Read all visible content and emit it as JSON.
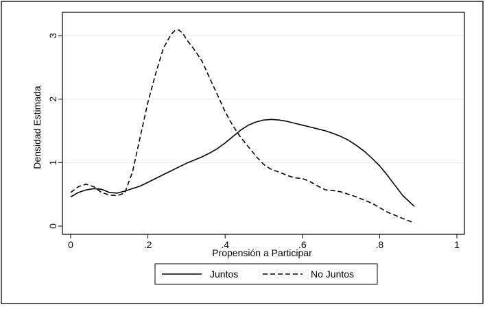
{
  "chart_data": {
    "type": "line",
    "title": "",
    "xlabel": "Propensión a Participar",
    "ylabel": "Densidad Estimada",
    "xlim": [
      0,
      1
    ],
    "ylim": [
      0,
      3.2
    ],
    "x_ticks": [
      0,
      0.2,
      0.4,
      0.6,
      0.8,
      1
    ],
    "x_tick_labels": [
      "0",
      ".2",
      ".4",
      ".6",
      ".8",
      "1"
    ],
    "y_ticks": [
      0,
      1,
      2,
      3
    ],
    "y_tick_labels": [
      "0",
      "1",
      "2",
      "3"
    ],
    "grid": "horizontal",
    "legend_position": "bottom",
    "series": [
      {
        "name": "Juntos",
        "style": "solid",
        "color": "#000000",
        "x": [
          0.0,
          0.02,
          0.04,
          0.06,
          0.08,
          0.1,
          0.12,
          0.14,
          0.16,
          0.18,
          0.2,
          0.22,
          0.24,
          0.26,
          0.28,
          0.3,
          0.32,
          0.34,
          0.36,
          0.38,
          0.4,
          0.42,
          0.44,
          0.46,
          0.48,
          0.5,
          0.52,
          0.54,
          0.56,
          0.58,
          0.6,
          0.62,
          0.64,
          0.66,
          0.68,
          0.7,
          0.72,
          0.74,
          0.76,
          0.78,
          0.8,
          0.82,
          0.84,
          0.86,
          0.89
        ],
        "y": [
          0.46,
          0.53,
          0.57,
          0.59,
          0.58,
          0.53,
          0.52,
          0.55,
          0.59,
          0.63,
          0.69,
          0.75,
          0.81,
          0.87,
          0.93,
          0.99,
          1.04,
          1.09,
          1.15,
          1.22,
          1.31,
          1.41,
          1.51,
          1.59,
          1.64,
          1.67,
          1.68,
          1.67,
          1.65,
          1.62,
          1.59,
          1.56,
          1.53,
          1.5,
          1.46,
          1.41,
          1.35,
          1.27,
          1.18,
          1.07,
          0.95,
          0.8,
          0.64,
          0.48,
          0.31
        ]
      },
      {
        "name": "No Juntos",
        "style": "dashed",
        "color": "#000000",
        "x": [
          0.0,
          0.02,
          0.04,
          0.06,
          0.08,
          0.1,
          0.12,
          0.14,
          0.16,
          0.18,
          0.2,
          0.22,
          0.24,
          0.26,
          0.27,
          0.28,
          0.29,
          0.3,
          0.32,
          0.34,
          0.36,
          0.38,
          0.4,
          0.42,
          0.44,
          0.46,
          0.48,
          0.5,
          0.52,
          0.54,
          0.56,
          0.58,
          0.6,
          0.62,
          0.64,
          0.66,
          0.68,
          0.7,
          0.72,
          0.74,
          0.76,
          0.78,
          0.8,
          0.82,
          0.84,
          0.86,
          0.89
        ],
        "y": [
          0.53,
          0.62,
          0.66,
          0.62,
          0.53,
          0.49,
          0.48,
          0.52,
          0.85,
          1.4,
          1.95,
          2.4,
          2.8,
          3.02,
          3.08,
          3.09,
          3.04,
          2.94,
          2.78,
          2.6,
          2.33,
          2.07,
          1.8,
          1.58,
          1.4,
          1.25,
          1.1,
          0.97,
          0.89,
          0.85,
          0.8,
          0.76,
          0.75,
          0.7,
          0.63,
          0.57,
          0.56,
          0.54,
          0.5,
          0.46,
          0.41,
          0.36,
          0.29,
          0.22,
          0.17,
          0.12,
          0.05
        ]
      }
    ]
  }
}
